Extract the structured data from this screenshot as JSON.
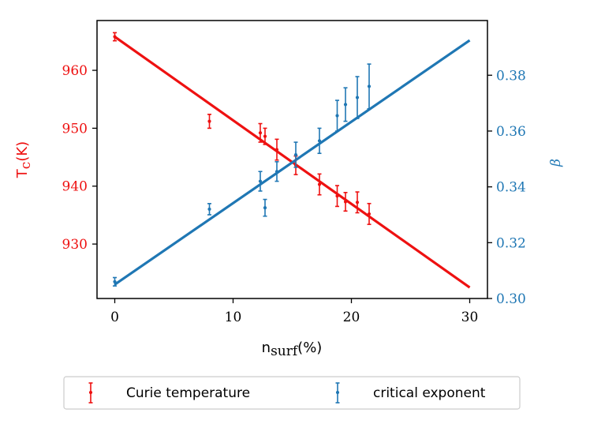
{
  "chart_data": {
    "type": "scatter",
    "title": "",
    "xlabel": "n",
    "xlabel_sub": "surf",
    "xlabel_unit": "(%)",
    "ylabel_left": "T",
    "ylabel_left_sub": "c",
    "ylabel_left_unit": "(K)",
    "ylabel_right": "β",
    "xlim": [
      -1.5,
      31.5
    ],
    "ylim_left": [
      920.6,
      968.6
    ],
    "ylim_right": [
      0.3,
      0.3996
    ],
    "x_ticks": [
      0,
      10,
      20,
      30
    ],
    "x_tick_labels": [
      "0",
      "10",
      "20",
      "30"
    ],
    "y_left_ticks": [
      930,
      940,
      950,
      960
    ],
    "y_left_tick_labels": [
      "930",
      "940",
      "950",
      "960"
    ],
    "y_right_ticks": [
      0.3,
      0.32,
      0.34,
      0.36,
      0.38
    ],
    "y_right_tick_labels": [
      "0.30",
      "0.32",
      "0.34",
      "0.36",
      "0.38"
    ],
    "legend_position": "below",
    "series": [
      {
        "name": "Curie temperature",
        "axis": "left",
        "color": "#ee1111",
        "points": [
          {
            "x": 0.0,
            "y": 965.8,
            "err": 0.7
          },
          {
            "x": 8.0,
            "y": 951.2,
            "err": 1.2
          },
          {
            "x": 12.3,
            "y": 949.2,
            "err": 1.6
          },
          {
            "x": 12.7,
            "y": 948.6,
            "err": 1.4
          },
          {
            "x": 13.7,
            "y": 946.3,
            "err": 1.8
          },
          {
            "x": 15.3,
            "y": 943.6,
            "err": 1.6
          },
          {
            "x": 17.3,
            "y": 940.3,
            "err": 1.8
          },
          {
            "x": 18.8,
            "y": 938.3,
            "err": 1.8
          },
          {
            "x": 19.5,
            "y": 937.3,
            "err": 1.6
          },
          {
            "x": 20.5,
            "y": 937.2,
            "err": 1.8
          },
          {
            "x": 21.5,
            "y": 935.2,
            "err": 1.8
          }
        ],
        "fit": {
          "x": [
            0,
            30
          ],
          "y": [
            965.8,
            922.5
          ]
        }
      },
      {
        "name": "critical exponent",
        "axis": "right",
        "color": "#1f77b4",
        "points": [
          {
            "x": 0.0,
            "y": 0.306,
            "err": 0.0015
          },
          {
            "x": 8.0,
            "y": 0.332,
            "err": 0.002
          },
          {
            "x": 12.3,
            "y": 0.342,
            "err": 0.0035
          },
          {
            "x": 12.7,
            "y": 0.3325,
            "err": 0.003
          },
          {
            "x": 13.7,
            "y": 0.3455,
            "err": 0.0035
          },
          {
            "x": 15.3,
            "y": 0.3515,
            "err": 0.0045
          },
          {
            "x": 17.3,
            "y": 0.3565,
            "err": 0.0045
          },
          {
            "x": 18.8,
            "y": 0.3655,
            "err": 0.0055
          },
          {
            "x": 19.5,
            "y": 0.3695,
            "err": 0.006
          },
          {
            "x": 20.5,
            "y": 0.372,
            "err": 0.0075
          },
          {
            "x": 21.5,
            "y": 0.376,
            "err": 0.008
          }
        ],
        "fit": {
          "x": [
            0,
            30
          ],
          "y": [
            0.305,
            0.3925
          ]
        }
      }
    ]
  }
}
